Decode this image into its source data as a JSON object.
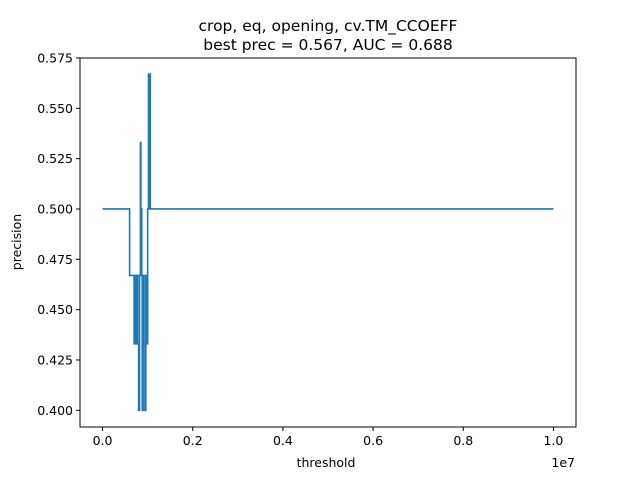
{
  "chart_data": {
    "type": "line",
    "title": "crop, eq, opening, cv.TM_CCOEFF",
    "subtitle": "best prec = 0.567, AUC = 0.688",
    "xlabel": "threshold",
    "ylabel": "precision",
    "x_offset_label": "1e7",
    "x_tick_values": [
      0,
      2000000,
      4000000,
      6000000,
      8000000,
      10000000
    ],
    "x_tick_labels": [
      "0.0",
      "0.2",
      "0.4",
      "0.6",
      "0.8",
      "1.0"
    ],
    "y_tick_values": [
      0.4,
      0.425,
      0.45,
      0.475,
      0.5,
      0.525,
      0.55,
      0.575
    ],
    "y_tick_labels": [
      "0.400",
      "0.425",
      "0.450",
      "0.475",
      "0.500",
      "0.525",
      "0.550",
      "0.575"
    ],
    "xlim": [
      -500000,
      10500000
    ],
    "ylim": [
      0.3917,
      0.575
    ],
    "grid": false,
    "line_color": "#1f77b4",
    "series": [
      {
        "x": [
          0,
          600000,
          600000,
          700000,
          700000,
          720000,
          720000,
          740000,
          740000,
          760000,
          760000,
          780000,
          780000,
          800000,
          800000,
          820000,
          820000,
          840000,
          840000,
          850000,
          850000,
          860000,
          860000,
          870000,
          870000,
          880000,
          880000,
          900000,
          900000,
          920000,
          920000,
          940000,
          940000,
          960000,
          960000,
          980000,
          980000,
          1000000,
          1000000,
          1020000,
          1020000,
          1040000,
          1040000,
          1050000,
          1050000,
          1060000,
          1060000,
          1080000,
          1080000,
          1100000,
          1100000,
          10000000
        ],
        "y": [
          0.5,
          0.5,
          0.467,
          0.467,
          0.433,
          0.433,
          0.467,
          0.467,
          0.433,
          0.433,
          0.467,
          0.467,
          0.433,
          0.433,
          0.4,
          0.4,
          0.467,
          0.467,
          0.533,
          0.533,
          0.467,
          0.467,
          0.5,
          0.5,
          0.467,
          0.467,
          0.4,
          0.4,
          0.467,
          0.467,
          0.433,
          0.433,
          0.4,
          0.4,
          0.467,
          0.467,
          0.433,
          0.433,
          0.5,
          0.5,
          0.567,
          0.567,
          0.5,
          0.5,
          0.567,
          0.567,
          0.5,
          0.5,
          0.5,
          0.5,
          0.5,
          0.5
        ]
      }
    ]
  }
}
